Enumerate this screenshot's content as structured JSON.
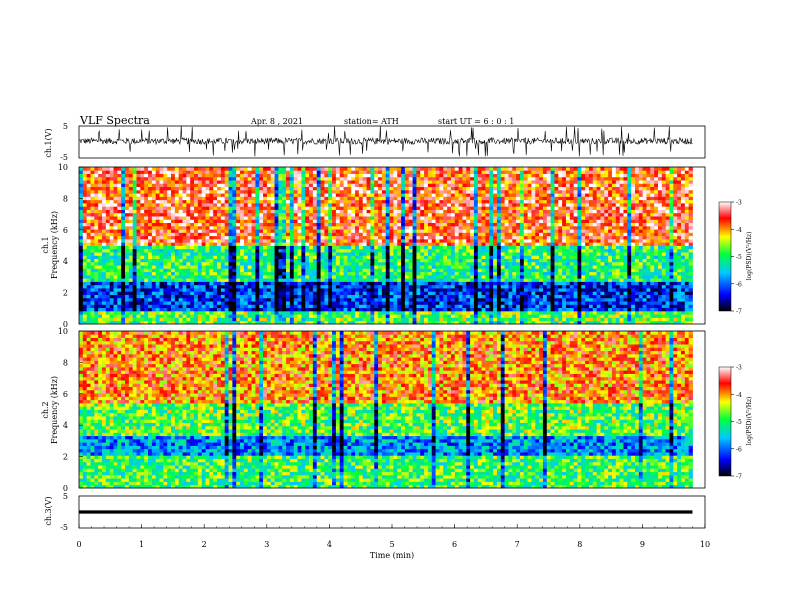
{
  "header": {
    "title": "VLF  Spectra",
    "date": "Apr. 8  , 2021",
    "station": "station= ATH",
    "start": "start  UT  =    6  : 0   : 1"
  },
  "chart_data": [
    {
      "type": "line",
      "name": "ch1-waveform",
      "ylabel": "ch.1(V)",
      "ylim": [
        -5,
        5
      ],
      "yticks": [
        "5",
        "-5"
      ],
      "xlim": [
        0,
        10
      ],
      "description_values": {
        "baseline_v": 0.3,
        "typical_amplitude_v": 1.0,
        "spike_amplitude_v": 4.8,
        "data_end_min": 9.8
      }
    },
    {
      "type": "heatmap",
      "name": "ch1-spectrogram",
      "ylabel": "Frequency  (kHz)",
      "channel_label": "ch.1",
      "ylim": [
        0,
        10
      ],
      "yticks": [
        "0",
        "2",
        "4",
        "6",
        "8",
        "10"
      ],
      "xlim": [
        0,
        10
      ],
      "data_end_min": 9.8,
      "colorbar": {
        "label": "log(PSD)(V²/Hz)",
        "range": [
          -7,
          -3
        ],
        "ticks": [
          "-3",
          "-4",
          "-5",
          "-6",
          "-7"
        ]
      },
      "bands_khz": [
        {
          "from": 0.0,
          "to": 0.8,
          "level": -4.8
        },
        {
          "from": 0.8,
          "to": 2.8,
          "level": -6.2
        },
        {
          "from": 2.8,
          "to": 5.0,
          "level": -5.0
        },
        {
          "from": 5.0,
          "to": 10.0,
          "level": -3.6
        }
      ]
    },
    {
      "type": "heatmap",
      "name": "ch2-spectrogram",
      "ylabel": "Frequency  (kHz)",
      "channel_label": "ch.2",
      "ylim": [
        0,
        10
      ],
      "yticks": [
        "0",
        "2",
        "4",
        "6",
        "8",
        "10"
      ],
      "xlim": [
        0,
        10
      ],
      "data_end_min": 9.8,
      "colorbar": {
        "label": "log(PSD)(V²/Hz)",
        "range": [
          -7,
          -3
        ],
        "ticks": [
          "-3",
          "-4",
          "-5",
          "-6",
          "-7"
        ]
      },
      "bands_khz": [
        {
          "from": 0.0,
          "to": 2.0,
          "level": -4.9
        },
        {
          "from": 2.0,
          "to": 3.4,
          "level": -5.8
        },
        {
          "from": 3.4,
          "to": 5.5,
          "level": -4.8
        },
        {
          "from": 5.5,
          "to": 10.0,
          "level": -3.9
        }
      ]
    },
    {
      "type": "line",
      "name": "ch3-waveform",
      "ylabel": "ch.3(V)",
      "ylim": [
        -5,
        5
      ],
      "yticks": [
        "5",
        "-5"
      ],
      "xlim": [
        0,
        10
      ],
      "xlabel": "Time  (min)",
      "xticks": [
        "0",
        "1",
        "2",
        "3",
        "4",
        "5",
        "6",
        "7",
        "8",
        "9",
        "10"
      ],
      "description_values": {
        "baseline_v": 0.0,
        "data_end_min": 9.8
      }
    }
  ],
  "colors": {
    "colormap": [
      "#000000",
      "#0000ff",
      "#00c0ff",
      "#00ff40",
      "#ffff00",
      "#ff0000",
      "#ffffff"
    ],
    "waveform": "#000000"
  }
}
